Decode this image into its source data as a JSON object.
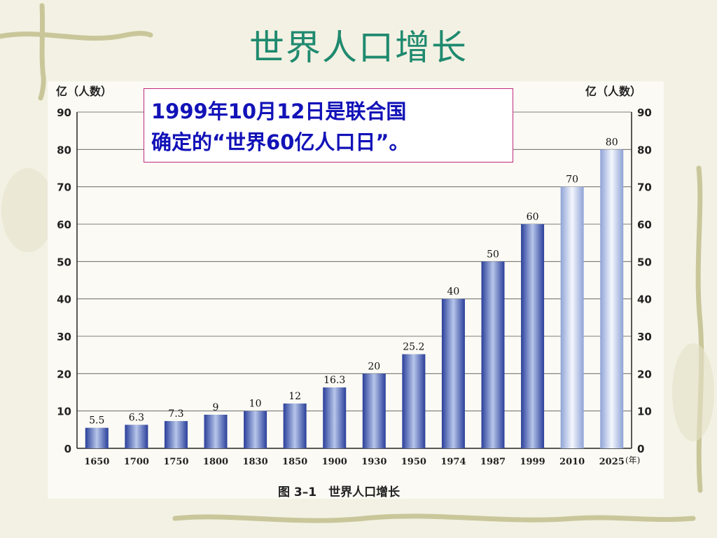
{
  "slide": {
    "title": "世界人口增长"
  },
  "callout": {
    "line1": "1999年10月12日是联合国",
    "line2": "确定的“世界60亿人口日”。"
  },
  "colors": {
    "title": "#1f8a6f",
    "callout_text": "#1212b8",
    "callout_border": "#c02a7a",
    "bar_dark": "#2a3f9a",
    "bar_light": "#b7c6ea"
  },
  "chart_data": {
    "type": "bar",
    "caption": "图 3–1　世界人口增长",
    "left_axis_label": "亿（人数）",
    "right_axis_label": "亿（人数）",
    "x_unit": "(年)",
    "ylim": [
      0,
      90
    ],
    "yticks": [
      0,
      10,
      20,
      30,
      40,
      50,
      60,
      70,
      80,
      90
    ],
    "grid": true,
    "categories": [
      "1650",
      "1700",
      "1750",
      "1800",
      "1830",
      "1850",
      "1900",
      "1930",
      "1950",
      "1974",
      "1987",
      "1999",
      "2010",
      "2025"
    ],
    "values": [
      5.5,
      6.3,
      7.3,
      9,
      10,
      12,
      16.3,
      20,
      25.2,
      40,
      50,
      60,
      70,
      80
    ],
    "value_labels": [
      "5.5",
      "6.3",
      "7.3",
      "9",
      "10",
      "12",
      "16.3",
      "20",
      "25.2",
      "40",
      "50",
      "60",
      "70",
      "80"
    ],
    "projected_from_index": 12
  }
}
